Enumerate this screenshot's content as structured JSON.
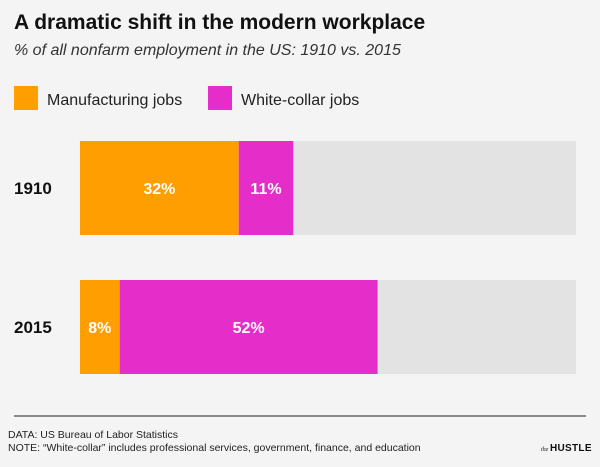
{
  "chart_data": {
    "type": "bar",
    "stacked": true,
    "orientation": "horizontal",
    "title": "A dramatic shift in the modern workplace",
    "subtitle": "% of all nonfarm employment in the US: 1910 vs. 2015",
    "categories": [
      "1910",
      "2015"
    ],
    "series": [
      {
        "name": "Manufacturing jobs",
        "values": [
          32,
          8
        ],
        "labels": [
          "32%",
          "8%"
        ],
        "color": "#FF9E00"
      },
      {
        "name": "White-collar jobs",
        "values": [
          11,
          52
        ],
        "labels": [
          "11%",
          "52%"
        ],
        "color": "#E52EC9"
      }
    ],
    "xlim": [
      0,
      100
    ],
    "background_track_color": "#e3e3e3",
    "legend_position": "top-left",
    "grid": false
  },
  "footer": {
    "data_source": "DATA: US Bureau of Labor Statistics",
    "note": "NOTE: “White-collar” includes professional services, government, finance, and education"
  },
  "brand": {
    "prefix": "the",
    "name": "HUSTLE"
  }
}
